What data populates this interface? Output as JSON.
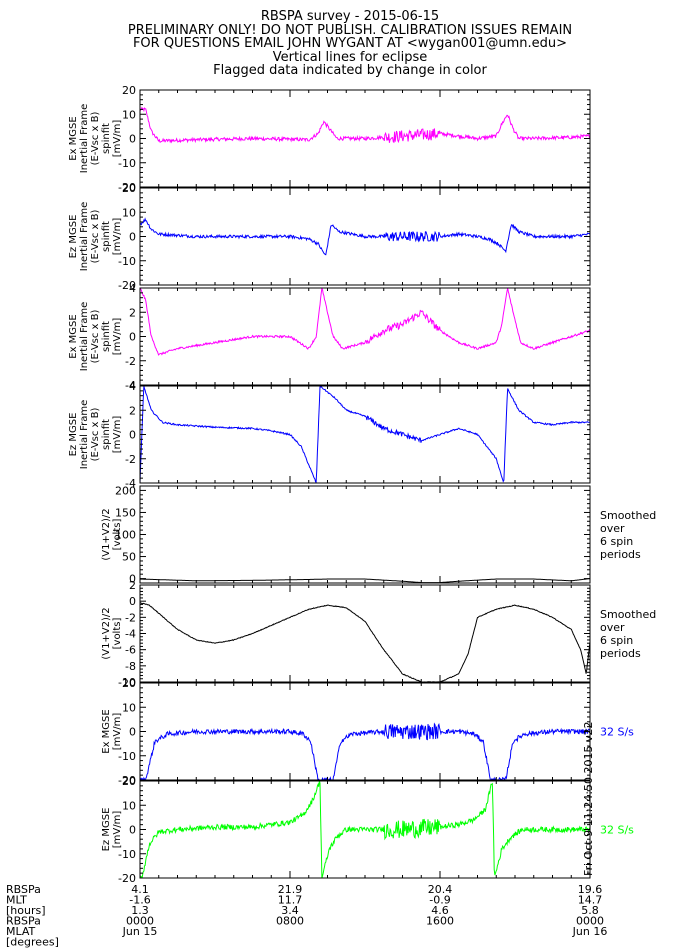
{
  "header": {
    "lines": [
      "RBSPA survey - 2015-06-15",
      "PRELIMINARY ONLY! DO NOT PUBLISH. CALIBRATION ISSUES REMAIN",
      "FOR QUESTIONS EMAIL JOHN WYGANT AT <wygan001@umn.edu>",
      "Vertical lines for eclipse",
      "Flagged data indicated by change in color"
    ]
  },
  "stamp": "Fri Oct  9 11:24:50 2015 v22",
  "colors": {
    "magenta": "#ff00ff",
    "blue": "#0000ff",
    "black": "#000000",
    "green": "#00ff00"
  },
  "chart_data": [
    {
      "type": "line",
      "ylabel": [
        "Ex MGSE",
        "Inertial Frame",
        "(E-Vsc x B)",
        "spinfit",
        "[mV/m]"
      ],
      "ylim": [
        -20,
        20
      ],
      "yticks": [
        "20",
        "10",
        "0",
        "-10",
        "-20"
      ],
      "color": "#ff00ff",
      "side_label": [],
      "series": [
        {
          "x_hours": [
            0,
            0.3,
            0.6,
            1,
            3,
            6,
            9,
            9.5,
            9.8,
            10.1,
            10.5,
            12,
            14,
            16,
            18,
            19,
            19.3,
            19.6,
            19.9,
            20.2,
            21,
            23,
            24
          ],
          "y": [
            12,
            12,
            3,
            -1,
            -0.5,
            0,
            -0.5,
            2,
            7,
            4,
            0,
            0,
            1,
            2,
            0,
            1,
            6,
            10,
            4,
            0,
            0,
            0.5,
            1
          ]
        }
      ]
    },
    {
      "type": "line",
      "ylabel": [
        "Ez MGSE",
        "Inertial Frame",
        "(E-Vsc x B)",
        "spinfit",
        "[mV/m]"
      ],
      "ylim": [
        -20,
        20
      ],
      "yticks": [
        "20",
        "10",
        "0",
        "-10",
        "-20"
      ],
      "color": "#0000ff",
      "side_label": [],
      "series": [
        {
          "x_hours": [
            0,
            0.3,
            0.6,
            1,
            3,
            6,
            8,
            9,
            9.5,
            9.9,
            10.2,
            10.6,
            12,
            14,
            16,
            17,
            18,
            18.6,
            19.1,
            19.5,
            19.8,
            20.2,
            21,
            23,
            24
          ],
          "y": [
            5,
            7,
            3,
            1,
            0,
            0,
            0,
            -1,
            -3,
            -8,
            5,
            2,
            0,
            0,
            0,
            1,
            0,
            -1,
            -3,
            -6,
            5,
            2,
            0,
            0,
            1
          ]
        }
      ]
    },
    {
      "type": "line",
      "ylabel": [
        "Ex MGSE",
        "Inertial Frame",
        "(E-Vsc x B)",
        "spinfit",
        "[mV/m]"
      ],
      "ylim": [
        -4,
        4
      ],
      "yticks": [
        "4",
        "2",
        "0",
        "-2",
        "-4"
      ],
      "color": "#ff00ff",
      "side_label": [],
      "series": [
        {
          "x_hours": [
            0,
            0.3,
            0.6,
            1,
            2,
            4,
            6,
            8,
            9,
            9.4,
            9.7,
            10,
            10.3,
            10.8,
            12,
            13,
            14,
            15,
            16,
            17,
            18,
            19,
            19.3,
            19.6,
            19.9,
            20.3,
            21,
            22,
            23,
            24
          ],
          "y": [
            4,
            3,
            0,
            -1.5,
            -1,
            -0.5,
            0,
            0,
            -1,
            0,
            4,
            2,
            0,
            -1,
            -0.5,
            0.5,
            1,
            2,
            0.5,
            -0.5,
            -1,
            -0.5,
            1,
            4,
            2,
            -0.5,
            -1,
            -0.5,
            0,
            0.5
          ]
        }
      ]
    },
    {
      "type": "line",
      "ylabel": [
        "Ez MGSE",
        "Inertial Frame",
        "(E-Vsc x B)",
        "spinfit",
        "[mV/m]"
      ],
      "ylim": [
        -4,
        4
      ],
      "yticks": [
        "4",
        "2",
        "0",
        "-2",
        "-4"
      ],
      "color": "#0000ff",
      "side_label": [],
      "series": [
        {
          "x_hours": [
            0,
            0.2,
            0.6,
            1.2,
            2,
            4,
            6,
            7,
            8,
            8.6,
            9.0,
            9.4,
            9.6,
            10.4,
            11,
            12,
            13,
            14,
            15,
            16,
            17,
            18,
            18.5,
            19.0,
            19.4,
            19.6,
            20.2,
            21,
            22,
            23,
            24
          ],
          "y": [
            -4,
            4,
            2,
            1,
            0.8,
            0.6,
            0.5,
            0.3,
            0,
            -1,
            -2.5,
            -4,
            4,
            3,
            2,
            1.5,
            0.5,
            0,
            -0.5,
            0,
            0.5,
            0,
            -1,
            -2,
            -4,
            3.8,
            2,
            1,
            0.8,
            1,
            1
          ]
        }
      ]
    },
    {
      "type": "line",
      "ylabel": [
        "(V1+V2)/2",
        "[volts]"
      ],
      "ylim": [
        -10,
        210
      ],
      "yticks": [
        "200",
        "150",
        "100",
        "50",
        "0"
      ],
      "color": "#000000",
      "side_label": [
        "Smoothed",
        "over",
        "6 spin",
        "periods"
      ],
      "series": [
        {
          "x_hours": [
            0,
            3,
            6,
            9,
            10,
            12,
            14,
            15,
            16,
            17,
            19,
            21,
            23,
            24
          ],
          "y": [
            -1,
            -5,
            -4,
            -2,
            -1,
            -1,
            -6,
            -9,
            -9,
            -6,
            -1,
            -1,
            -5,
            0
          ]
        }
      ]
    },
    {
      "type": "line",
      "ylabel": [
        "(V1+V2)/2",
        "[volts]"
      ],
      "ylim": [
        -10,
        2
      ],
      "yticks": [
        "2",
        "0",
        "-2",
        "-4",
        "-6",
        "-8",
        "-10"
      ],
      "color": "#000000",
      "side_label": [
        "Smoothed",
        "over",
        "6 spin",
        "periods"
      ],
      "series": [
        {
          "x_hours": [
            0,
            0.5,
            1,
            2,
            3,
            4,
            5,
            6,
            7,
            8,
            9,
            10,
            11,
            12,
            13,
            14,
            15,
            16,
            17,
            17.5,
            18,
            19,
            20,
            21,
            22,
            23,
            23.5,
            23.8,
            24
          ],
          "y": [
            -0.2,
            -0.5,
            -1.5,
            -3.5,
            -4.8,
            -5.2,
            -4.8,
            -4,
            -3,
            -2,
            -1,
            -0.5,
            -0.8,
            -2.5,
            -6,
            -9,
            -10,
            -10,
            -9,
            -6.5,
            -2,
            -1,
            -0.5,
            -1,
            -2,
            -3.5,
            -6,
            -9,
            -5
          ]
        }
      ]
    },
    {
      "type": "line",
      "ylabel": [
        "Ex MGSE",
        "[mV/m]"
      ],
      "ylim": [
        -20,
        20
      ],
      "yticks": [
        "20",
        "10",
        "0",
        "-10",
        "-20"
      ],
      "color": "#0000ff",
      "side_label": [
        "32 S/s"
      ],
      "series": [
        {
          "x_hours": [
            0,
            0.3,
            0.8,
            1.5,
            3,
            6,
            8,
            8.7,
            9.1,
            9.5,
            9.9,
            10.3,
            10.7,
            11.3,
            13,
            15,
            17,
            17.8,
            18.3,
            18.7,
            19.1,
            19.5,
            19.9,
            20.5,
            22,
            24
          ],
          "y": [
            -20,
            -20,
            -4,
            -1,
            0,
            0,
            0,
            -1,
            -4,
            -20,
            -20,
            -20,
            -4,
            -1,
            0,
            0,
            0,
            -1,
            -4,
            -20,
            -20,
            -20,
            -4,
            -1,
            0,
            0
          ]
        }
      ]
    },
    {
      "type": "line",
      "ylabel": [
        "Ez MGSE",
        "[mV/m]"
      ],
      "ylim": [
        -20,
        20
      ],
      "yticks": [
        "20",
        "10",
        "0",
        "-10",
        "-20"
      ],
      "color": "#00ff00",
      "side_label": [
        "32 S/s"
      ],
      "series": [
        {
          "x_hours": [
            0,
            0.1,
            0.5,
            1,
            2,
            4,
            6,
            7,
            8,
            8.7,
            9.2,
            9.6,
            9.7,
            10.1,
            10.5,
            11,
            12,
            14,
            16,
            17,
            17.8,
            18.4,
            18.8,
            18.9,
            19.3,
            19.8,
            20.4,
            21.5,
            23,
            24
          ],
          "y": [
            -20,
            -20,
            -6,
            -1,
            0,
            1,
            1,
            2,
            3,
            6,
            12,
            20,
            -20,
            -8,
            -3,
            0,
            0,
            0,
            1,
            2,
            4,
            8,
            20,
            -20,
            -8,
            -3,
            0,
            0,
            0,
            0
          ]
        }
      ]
    }
  ],
  "footer": {
    "labels": [
      "RBSPa",
      "MLT",
      "[hours]",
      "RBSPa",
      "MLAT",
      "[degrees]"
    ],
    "columns": [
      {
        "values": [
          "4.1",
          "-1.6",
          "1.3",
          "0000",
          "Jun 15"
        ]
      },
      {
        "values": [
          "21.9",
          "11.7",
          "3.4",
          "0800",
          ""
        ]
      },
      {
        "values": [
          "20.4",
          "-0.9",
          "4.6",
          "1600",
          ""
        ]
      },
      {
        "values": [
          "19.6",
          "14.7",
          "5.8",
          "0000",
          "Jun 16"
        ]
      }
    ]
  }
}
